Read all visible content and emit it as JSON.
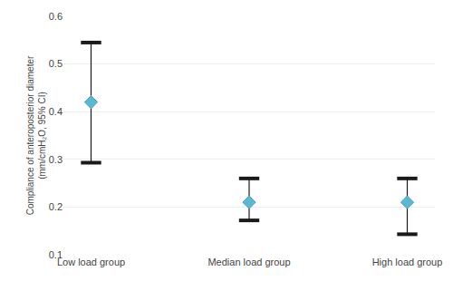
{
  "chart_data": {
    "type": "scatter",
    "marker": "diamond",
    "categories": [
      "Low load group",
      "Median load group",
      "High load group"
    ],
    "values": [
      0.42,
      0.21,
      0.21
    ],
    "lower_ci": [
      0.293,
      0.172,
      0.143
    ],
    "upper_ci": [
      0.545,
      0.26,
      0.26
    ],
    "color": "#5BB8D4",
    "y_label": "Compliance of anteroposterior diameter\n(mm/cmH₂O, 95% CI)",
    "ylim": [
      0.1,
      0.6
    ],
    "yticks": [
      0.1,
      0.2,
      0.3,
      0.4,
      0.5,
      0.6
    ],
    "grid": true
  }
}
